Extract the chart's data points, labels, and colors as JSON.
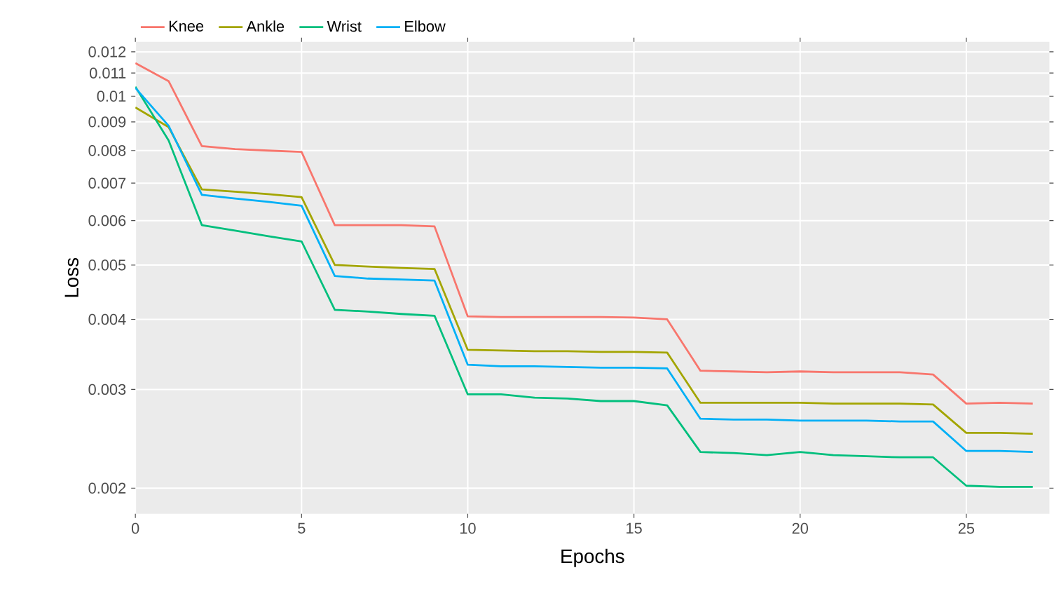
{
  "chart_data": {
    "type": "line",
    "xlabel": "Epochs",
    "ylabel": "Loss",
    "log": "y",
    "grid": true,
    "legend": "top left",
    "marker": "none",
    "line_style": "solid",
    "x": [
      0,
      1,
      2,
      3,
      4,
      5,
      6,
      7,
      8,
      9,
      10,
      11,
      12,
      13,
      14,
      15,
      16,
      17,
      18,
      19,
      20,
      21,
      22,
      23,
      24,
      25,
      26,
      27
    ],
    "xlim": [
      0,
      27.5
    ],
    "xticks": [
      0,
      5,
      10,
      15,
      20,
      25
    ],
    "ylim": [
      0.0018,
      0.0125
    ],
    "yticks": [
      0.002,
      0.003,
      0.004,
      0.005,
      0.006,
      0.007,
      0.008,
      0.009,
      0.01,
      0.011,
      0.012
    ],
    "series": [
      {
        "name": "Knee",
        "color": "#f8766d",
        "values": [
          0.01146,
          0.01064,
          0.00815,
          0.00805,
          0.008,
          0.00796,
          0.00589,
          0.00589,
          0.00589,
          0.00586,
          0.00405,
          0.00404,
          0.00404,
          0.00404,
          0.00404,
          0.00403,
          0.004,
          0.00324,
          0.00323,
          0.00322,
          0.00323,
          0.00322,
          0.00322,
          0.00322,
          0.00319,
          0.00283,
          0.00284,
          0.00283
        ]
      },
      {
        "name": "Ankle",
        "color": "#a3a500",
        "values": [
          0.00955,
          0.00881,
          0.00682,
          0.00676,
          0.00669,
          0.00661,
          0.005,
          0.00497,
          0.00494,
          0.00492,
          0.00353,
          0.00352,
          0.00351,
          0.00351,
          0.0035,
          0.0035,
          0.00349,
          0.00284,
          0.00284,
          0.00284,
          0.00284,
          0.00283,
          0.00283,
          0.00283,
          0.00282,
          0.00251,
          0.00251,
          0.0025
        ]
      },
      {
        "name": "Wrist",
        "color": "#00bf7d",
        "values": [
          0.0104,
          0.00834,
          0.00589,
          0.00576,
          0.00563,
          0.00551,
          0.00416,
          0.00413,
          0.00409,
          0.00406,
          0.00294,
          0.00294,
          0.0029,
          0.00289,
          0.00286,
          0.00286,
          0.00281,
          0.00232,
          0.00231,
          0.00229,
          0.00232,
          0.00229,
          0.00228,
          0.00227,
          0.00227,
          0.00202,
          0.00201,
          0.00201
        ]
      },
      {
        "name": "Elbow",
        "color": "#00b0f6",
        "values": [
          0.01035,
          0.00886,
          0.00667,
          0.00657,
          0.00648,
          0.00638,
          0.00478,
          0.00473,
          0.00471,
          0.00469,
          0.00332,
          0.0033,
          0.0033,
          0.00329,
          0.00328,
          0.00328,
          0.00327,
          0.00266,
          0.00265,
          0.00265,
          0.00264,
          0.00264,
          0.00264,
          0.00263,
          0.00263,
          0.00233,
          0.00233,
          0.00232
        ]
      }
    ]
  }
}
